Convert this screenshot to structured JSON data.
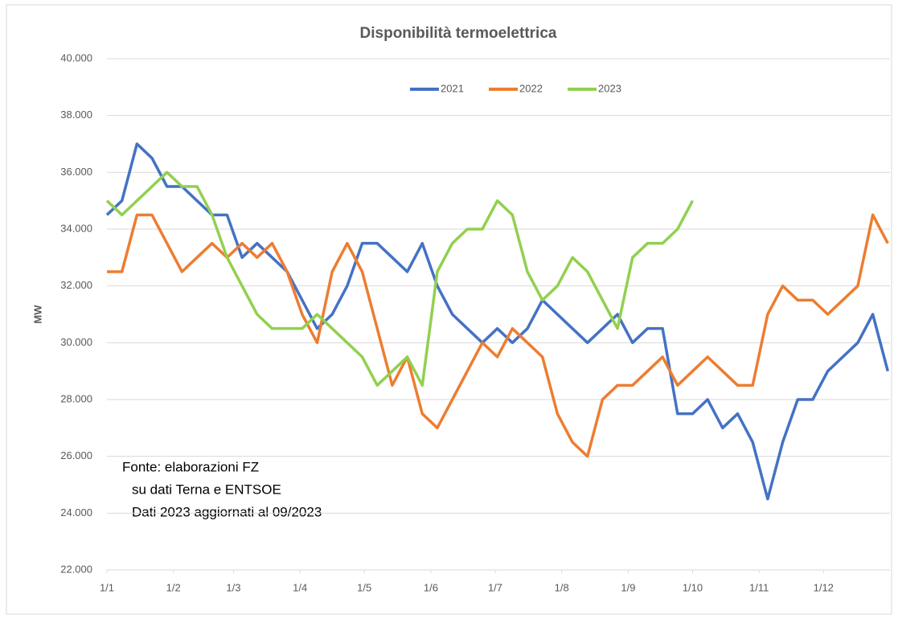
{
  "chart_data": {
    "type": "line",
    "title": "Disponibilità termoelettrica",
    "y_label": "MW",
    "annotations": [
      "Fonte: elaborazioni FZ",
      "su dati Terna e ENTSOE",
      "Dati 2023 aggiornati al 09/2023"
    ],
    "x": [
      0,
      7,
      14,
      21,
      28,
      35,
      42,
      49,
      56,
      63,
      70,
      77,
      84,
      91,
      98,
      105,
      112,
      119,
      126,
      133,
      140,
      147,
      154,
      161,
      168,
      175,
      182,
      189,
      196,
      203,
      210,
      217,
      224,
      231,
      238,
      245,
      252,
      259,
      266,
      273,
      280,
      287,
      294,
      301,
      308,
      315,
      322,
      329,
      336,
      343,
      350,
      357,
      364
    ],
    "xlim": [
      0,
      365
    ],
    "xticks": [
      {
        "value": 0,
        "label": "1/1"
      },
      {
        "value": 31,
        "label": "1/2"
      },
      {
        "value": 59,
        "label": "1/3"
      },
      {
        "value": 90,
        "label": "1/4"
      },
      {
        "value": 120,
        "label": "1/5"
      },
      {
        "value": 151,
        "label": "1/6"
      },
      {
        "value": 181,
        "label": "1/7"
      },
      {
        "value": 212,
        "label": "1/8"
      },
      {
        "value": 243,
        "label": "1/9"
      },
      {
        "value": 273,
        "label": "1/10"
      },
      {
        "value": 304,
        "label": "1/11"
      },
      {
        "value": 334,
        "label": "1/12"
      }
    ],
    "ylim": [
      22000,
      40000
    ],
    "yticks": [
      {
        "value": 22000,
        "label": "22.000"
      },
      {
        "value": 24000,
        "label": "24.000"
      },
      {
        "value": 26000,
        "label": "26.000"
      },
      {
        "value": 28000,
        "label": "28.000"
      },
      {
        "value": 30000,
        "label": "30.000"
      },
      {
        "value": 32000,
        "label": "32.000"
      },
      {
        "value": 34000,
        "label": "34.000"
      },
      {
        "value": 36000,
        "label": "36.000"
      },
      {
        "value": 38000,
        "label": "38.000"
      },
      {
        "value": 40000,
        "label": "40.000"
      }
    ],
    "grid": true,
    "legend": "top",
    "series": [
      {
        "name": "2021",
        "color": "#4472c4",
        "values": [
          34500,
          35000,
          37000,
          36500,
          35500,
          35500,
          35000,
          34500,
          34500,
          33000,
          33500,
          33000,
          32500,
          31500,
          30500,
          31000,
          32000,
          33500,
          33500,
          33000,
          32500,
          33500,
          32000,
          31000,
          30500,
          30000,
          30500,
          30000,
          30500,
          31500,
          31000,
          30500,
          30000,
          30500,
          31000,
          30000,
          30500,
          30500,
          27500,
          27500,
          28000,
          27000,
          27500,
          26500,
          24500,
          26500,
          28000,
          28000,
          29000,
          29500,
          30000,
          31000,
          29000
        ]
      },
      {
        "name": "2022",
        "color": "#ed7d31",
        "values": [
          32500,
          32500,
          34500,
          34500,
          33500,
          32500,
          33000,
          33500,
          33000,
          33500,
          33000,
          33500,
          32500,
          31000,
          30000,
          32500,
          33500,
          32500,
          30500,
          28500,
          29500,
          27500,
          27000,
          28000,
          29000,
          30000,
          29500,
          30500,
          30000,
          29500,
          27500,
          26500,
          26000,
          28000,
          28500,
          28500,
          29000,
          29500,
          28500,
          29000,
          29500,
          29000,
          28500,
          28500,
          31000,
          32000,
          31500,
          31500,
          31000,
          31500,
          32000,
          34500,
          33500
        ]
      },
      {
        "name": "2023",
        "color": "#92d050",
        "values": [
          35000,
          34500,
          35000,
          35500,
          36000,
          35500,
          35500,
          34500,
          33000,
          32000,
          31000,
          30500,
          30500,
          30500,
          31000,
          30500,
          30000,
          29500,
          28500,
          29000,
          29500,
          28500,
          32500,
          33500,
          34000,
          34000,
          35000,
          34500,
          32500,
          31500,
          32000,
          33000,
          32500,
          31500,
          30500,
          33000,
          33500,
          33500,
          34000,
          35000,
          null,
          null,
          null,
          null,
          null,
          null,
          null,
          null,
          null,
          null,
          null,
          null,
          null
        ]
      }
    ]
  }
}
